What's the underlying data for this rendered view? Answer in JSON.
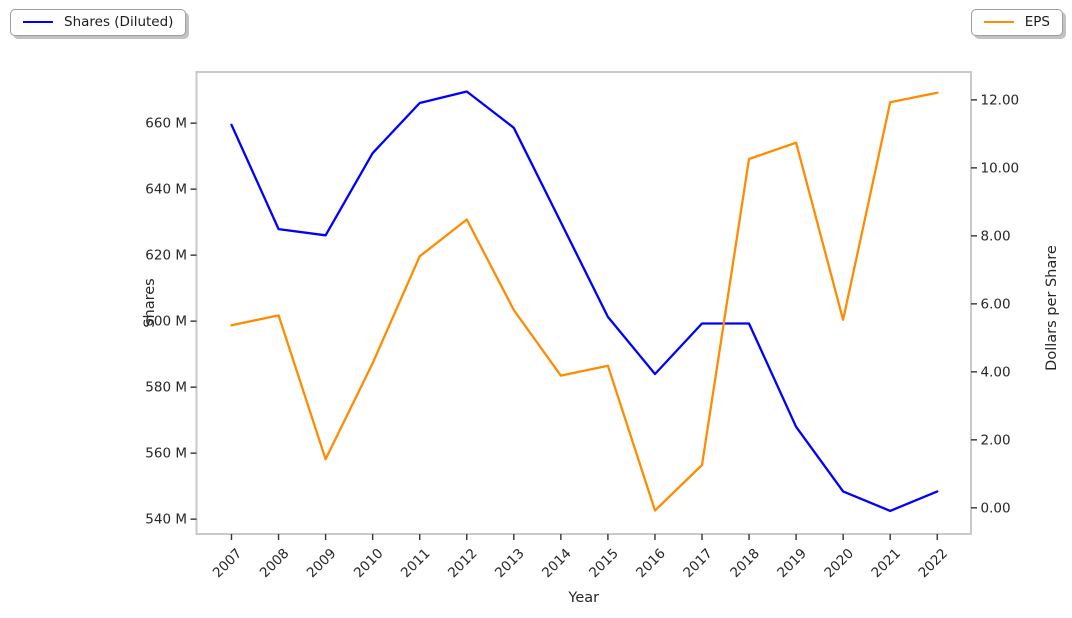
{
  "figure": {
    "background": "#ffffff",
    "plot_border_color": "#c9c9c9",
    "tick_color": "#333333",
    "text_color": "#262626"
  },
  "legend_left": {
    "label": "Shares (Diluted)",
    "color": "#0000ff"
  },
  "legend_right": {
    "label": "EPS",
    "color": "#ff8c00"
  },
  "chart_data": {
    "type": "line",
    "title": "",
    "xlabel": "Year",
    "grid": false,
    "x_categories": [
      "2007",
      "2008",
      "2009",
      "2010",
      "2011",
      "2012",
      "2013",
      "2014",
      "2015",
      "2016",
      "2017",
      "2018",
      "2019",
      "2020",
      "2021",
      "2022"
    ],
    "left_axis": {
      "label": "Shares",
      "unit": "millions of shares",
      "tick_labels": [
        "660 M",
        "640 M",
        "620 M",
        "600 M",
        "580 M",
        "560 M",
        "540 M"
      ],
      "tick_values": [
        660,
        640,
        620,
        600,
        580,
        560,
        540
      ],
      "ylim": [
        535.5,
        675.5
      ]
    },
    "right_axis": {
      "label": "Dollars per Share",
      "unit": "USD",
      "tick_labels": [
        "12.00",
        "10.00",
        "8.00",
        "6.00",
        "4.00",
        "2.00",
        "0.00"
      ],
      "tick_values": [
        12,
        10,
        8,
        6,
        4,
        2,
        0
      ],
      "ylim": [
        -0.77,
        12.82
      ]
    },
    "series": [
      {
        "name": "Shares (Diluted)",
        "axis": "left",
        "color": "#0000ff",
        "values_unit": "M",
        "values": [
          659.5,
          627.9,
          626.0,
          650.9,
          666.1,
          669.6,
          658.6,
          630.0,
          601.3,
          584.0,
          599.3,
          599.3,
          568.0,
          548.4,
          542.5,
          548.4
        ]
      },
      {
        "name": "EPS",
        "axis": "right",
        "color": "#ff8c00",
        "values_unit": "$",
        "values": [
          5.37,
          5.66,
          1.43,
          4.25,
          7.4,
          8.48,
          5.82,
          3.89,
          4.18,
          -0.08,
          1.26,
          10.26,
          10.74,
          5.53,
          11.93,
          12.21
        ]
      }
    ],
    "legend_positions": [
      "top-left outside axes",
      "top-right outside axes"
    ]
  }
}
